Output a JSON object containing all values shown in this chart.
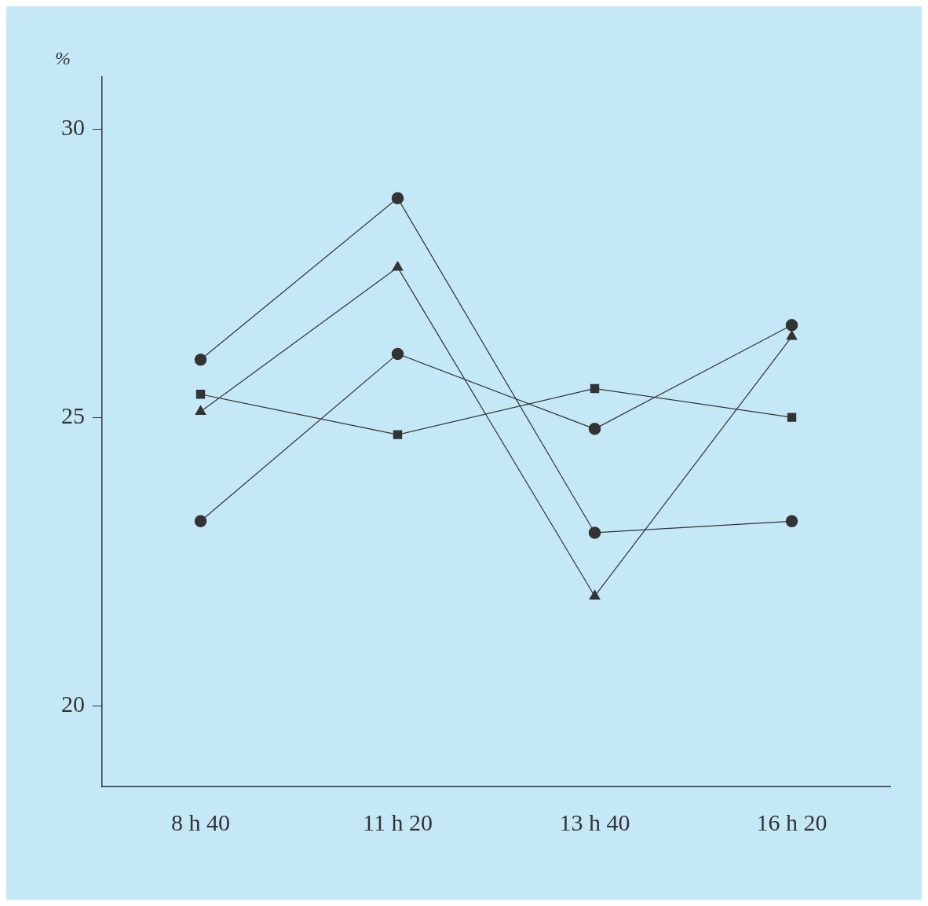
{
  "chart_data": {
    "type": "line",
    "ylabel": "%",
    "categories": [
      "8 h 40",
      "11 h 20",
      "13 h 40",
      "16 h 20"
    ],
    "series": [
      {
        "color": "#333333",
        "marker": "circle",
        "values": [
          26.0,
          28.8,
          23.0,
          23.2
        ]
      },
      {
        "color": "#333333",
        "marker": "triangle",
        "values": [
          25.1,
          27.6,
          21.9,
          26.4
        ]
      },
      {
        "color": "#333333",
        "marker": "circle",
        "values": [
          23.2,
          26.1,
          24.8,
          26.6
        ]
      },
      {
        "color": "#333333",
        "marker": "square",
        "values": [
          25.4,
          24.7,
          25.5,
          25.0
        ]
      }
    ],
    "ylim": [
      18.6,
      30.9
    ],
    "yticks": [
      20,
      25,
      30
    ],
    "grid": false,
    "legend": false
  }
}
